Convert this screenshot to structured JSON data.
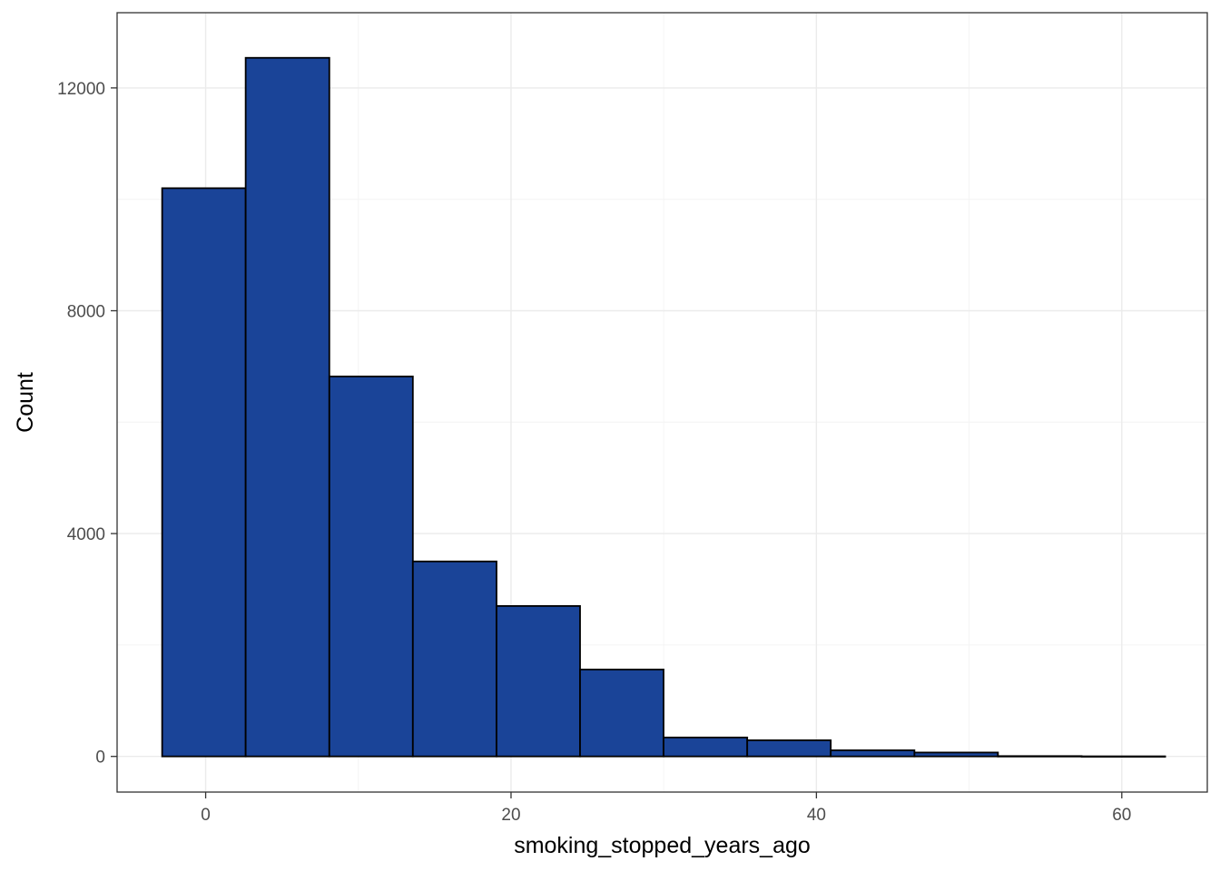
{
  "chart_data": {
    "type": "bar",
    "subtype": "histogram",
    "title": "",
    "xlabel": "smoking_stopped_years_ago",
    "ylabel": "Count",
    "xlim": [
      -5.8,
      65.6
    ],
    "ylim": [
      -640,
      13350
    ],
    "x_ticks": [
      0,
      20,
      40,
      60
    ],
    "y_ticks": [
      0,
      4000,
      8000,
      12000
    ],
    "x_tick_labels": [
      "0",
      "20",
      "40",
      "60"
    ],
    "y_tick_labels": [
      "0",
      "4000",
      "8000",
      "12000"
    ],
    "grid": true,
    "legend": "none",
    "colors": {
      "bar_fill": "#1a4498",
      "bar_stroke": "#000000",
      "grid_major": "#ebebeb",
      "grid_minor": "#f4f4f4",
      "panel_border": "#333333"
    },
    "bins": [
      {
        "x0": -2.85,
        "x1": 2.62,
        "count": 10200
      },
      {
        "x0": 2.62,
        "x1": 8.1,
        "count": 12540
      },
      {
        "x0": 8.1,
        "x1": 13.57,
        "count": 6820
      },
      {
        "x0": 13.57,
        "x1": 19.05,
        "count": 3500
      },
      {
        "x0": 19.05,
        "x1": 24.52,
        "count": 2700
      },
      {
        "x0": 24.52,
        "x1": 29.99,
        "count": 1560
      },
      {
        "x0": 29.99,
        "x1": 35.47,
        "count": 340
      },
      {
        "x0": 35.47,
        "x1": 40.94,
        "count": 290
      },
      {
        "x0": 40.94,
        "x1": 46.42,
        "count": 110
      },
      {
        "x0": 46.42,
        "x1": 51.89,
        "count": 70
      },
      {
        "x0": 51.89,
        "x1": 57.37,
        "count": 6
      },
      {
        "x0": 57.37,
        "x1": 62.84,
        "count": 2
      }
    ]
  }
}
